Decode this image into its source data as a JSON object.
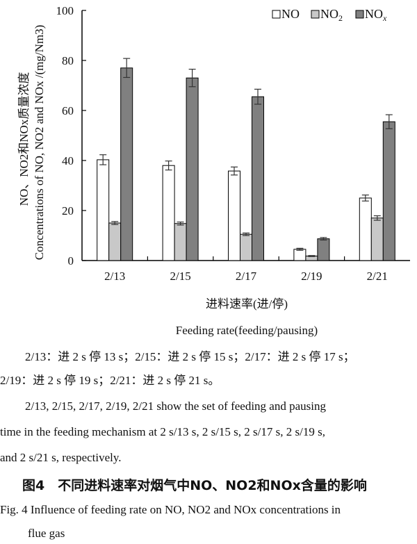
{
  "chart_data": {
    "type": "bar",
    "categories": [
      "2/13",
      "2/15",
      "2/17",
      "2/19",
      "2/21"
    ],
    "series": [
      {
        "name": "NO",
        "values": [
          40.3,
          38.0,
          35.8,
          4.5,
          25.0
        ],
        "errors": [
          2.0,
          1.8,
          1.6,
          0.4,
          1.2
        ],
        "color": "#ffffff"
      },
      {
        "name": "NO2",
        "values": [
          15.0,
          14.8,
          10.5,
          1.8,
          17.0
        ],
        "errors": [
          0.6,
          0.6,
          0.5,
          0.2,
          0.9
        ],
        "color": "#c8c8c8"
      },
      {
        "name": "NOx",
        "values": [
          77.0,
          73.0,
          65.5,
          8.7,
          55.5
        ],
        "errors": [
          3.8,
          3.5,
          3.0,
          0.5,
          2.8
        ],
        "color": "#808080"
      }
    ],
    "ylim": [
      0,
      100
    ],
    "yticks": [
      0,
      20,
      40,
      60,
      80,
      100
    ],
    "legend_position": "top-right",
    "ylabel_cn": "NO、NO2和NOx质量浓度",
    "ylabel_en": "Concentrations of NO, NO2 and NOx /(mg/Nm3)",
    "xlabel_cn": "进料速率(进/停)",
    "xlabel_en": "Feeding rate(feeding/pausing)"
  },
  "notes": {
    "cn_line1": "2/13：进 2 s 停 13 s；2/15：进 2 s 停 15 s；2/17：进 2 s 停 17 s；",
    "cn_line2": "2/19：进 2 s 停 19 s；2/21：进 2 s 停 21 s。",
    "en_line1": "2/13, 2/15, 2/17, 2/19, 2/21 show the set of feeding and pausing",
    "en_line2": "time in the feeding mechanism at 2 s/13 s, 2 s/15 s, 2 s/17 s, 2 s/19 s,",
    "en_line3": "and 2 s/21 s, respectively."
  },
  "caption": {
    "cn": "图4　不同进料速率对烟气中NO、NO2和NOx含量的影响",
    "en_line1": "Fig. 4  Influence of feeding rate on NO, NO2 and NOx concentrations in",
    "en_line2": "flue gas"
  }
}
